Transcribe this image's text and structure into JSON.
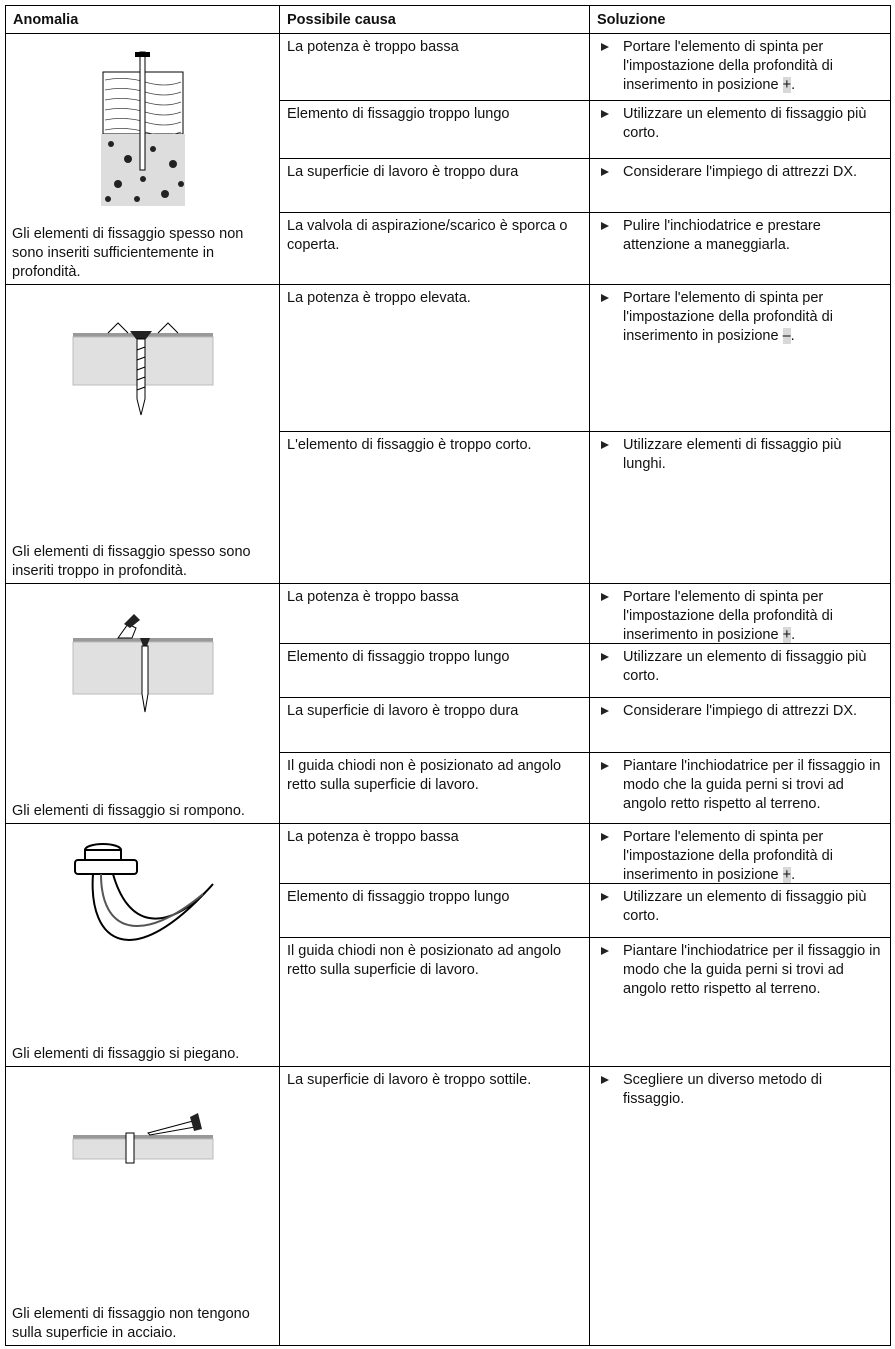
{
  "header": {
    "columns": [
      "Anomalia",
      "Possibile causa",
      "Soluzione"
    ]
  },
  "table": {
    "groups": [
      {
        "anomaly": "Gli elementi di fissaggio spesso non sono inseriti sufficientemente in profondità.",
        "rows": [
          {
            "cause": "La potenza è troppo bassa",
            "solution": {
              "text": "Portare l'elemento di spinta per l'impostazione della profondità di inserimento in posizione ",
              "symbol": "+",
              "end": "."
            }
          },
          {
            "cause": "Elemento di fissaggio troppo lungo",
            "solution": {
              "text": "Utilizzare un elemento di fissaggio più corto."
            }
          },
          {
            "cause": "La superficie di lavoro è troppo dura",
            "solution": {
              "text": "Considerare l'impiego di attrezzi DX."
            }
          },
          {
            "cause": "La valvola di aspirazione/scarico è sporca o coperta.",
            "solution": {
              "text": "Pulire l'inchiodatrice e prestare attenzione a maneggiarla."
            }
          }
        ]
      },
      {
        "anomaly": "Gli elementi di fissaggio spesso sono inseriti troppo in profondità.",
        "rows": [
          {
            "cause": "La potenza è troppo elevata.",
            "solution": {
              "text": "Portare l'elemento di spinta per l'impostazione della profondità di inserimento in posizione ",
              "symbol": "–",
              "end": "."
            }
          },
          {
            "cause": "L'elemento di fissaggio è troppo corto.",
            "solution": {
              "text": "Utilizzare elementi di fissaggio più lunghi."
            }
          }
        ]
      },
      {
        "anomaly": "Gli elementi di fissaggio si rompono.",
        "rows": [
          {
            "cause": "La potenza è troppo bassa",
            "solution": {
              "text": "Portare l'elemento di spinta per l'impostazione della profondità di inserimento in posizione ",
              "symbol": "+",
              "end": "."
            }
          },
          {
            "cause": "Elemento di fissaggio troppo lungo",
            "solution": {
              "text": "Utilizzare un elemento di fissaggio più corto."
            }
          },
          {
            "cause": "La superficie di lavoro è troppo dura",
            "solution": {
              "text": "Considerare l'impiego di attrezzi DX."
            }
          },
          {
            "cause": "Il guida chiodi non è posizionato ad angolo retto sulla superficie di lavoro.",
            "solution": {
              "text": "Piantare l'inchiodatrice per il fissaggio in modo che la guida perni si trovi ad angolo retto rispetto al terreno."
            }
          }
        ]
      },
      {
        "anomaly": "Gli elementi di fissaggio si piegano.",
        "rows": [
          {
            "cause": "La potenza è troppo bassa",
            "solution": {
              "text": "Portare l'elemento di spinta per l'impostazione della profondità di inserimento in posizione ",
              "symbol": "+",
              "end": "."
            }
          },
          {
            "cause": "Elemento di fissaggio troppo lungo",
            "solution": {
              "text": "Utilizzare un elemento di fissaggio più corto."
            }
          },
          {
            "cause": "Il guida chiodi non è posizionato ad angolo retto sulla superficie di lavoro.",
            "solution": {
              "text": "Piantare l'inchiodatrice per il fissaggio in modo che la guida perni si trovi ad angolo retto rispetto al terreno."
            }
          }
        ]
      },
      {
        "anomaly": "Gli elementi di fissaggio non tengono sulla superficie in acciaio.",
        "rows": [
          {
            "cause": "La superficie di lavoro è troppo sottile.",
            "solution": {
              "text": "Scegliere un diverso metodo di fissaggio."
            }
          }
        ]
      }
    ]
  }
}
